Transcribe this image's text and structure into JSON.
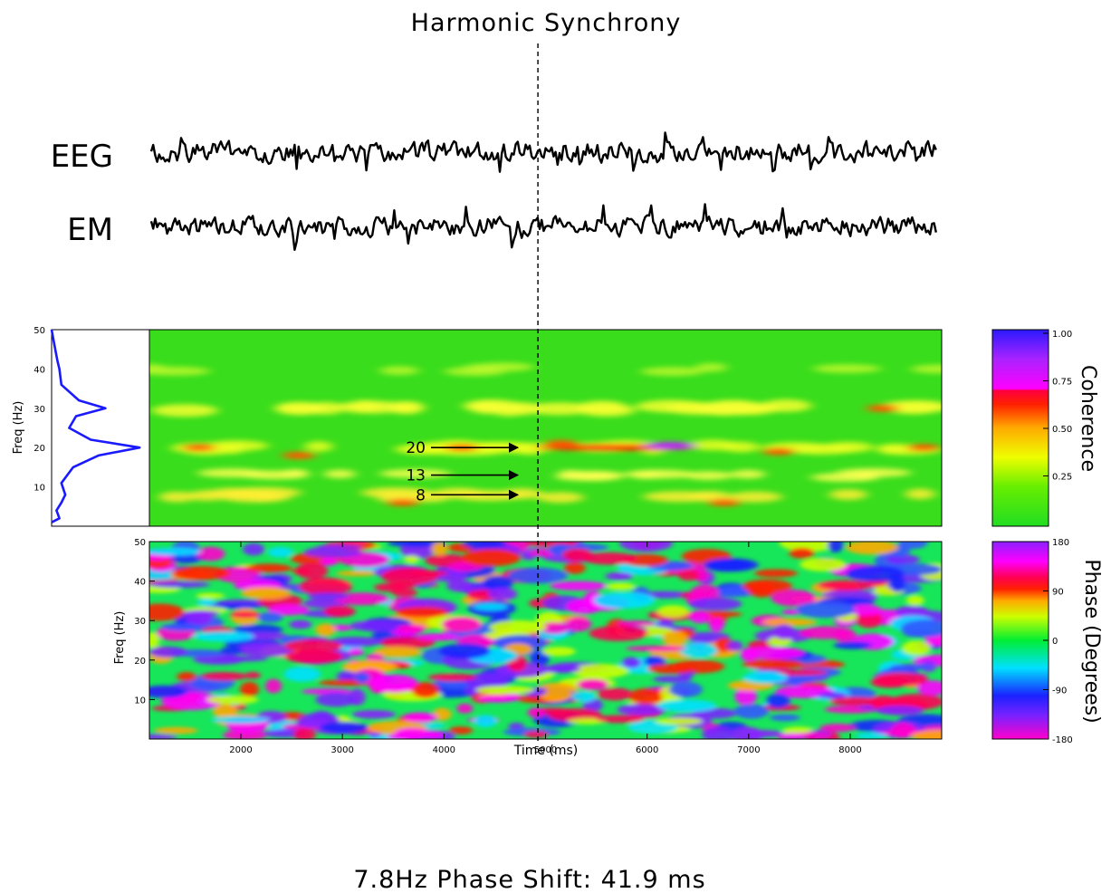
{
  "title": "Harmonic Synchrony",
  "caption": "7.8Hz Phase Shift: 41.9 ms",
  "chart_data": [
    {
      "type": "line",
      "series": [
        {
          "name": "EEG",
          "color": "#000000"
        },
        {
          "name": "EM",
          "color": "#000000"
        }
      ],
      "marker_x": 4925
    },
    {
      "type": "line",
      "ylabel": "Freq (Hz)",
      "ylim": [
        0,
        50
      ],
      "yticks": [
        10,
        20,
        30,
        40,
        50
      ],
      "line_color": "#1a1aff",
      "x": [
        0.0,
        0.08,
        0.05,
        0.1,
        0.14,
        0.1,
        0.22,
        0.48,
        0.9,
        0.4,
        0.18,
        0.25,
        0.55,
        0.28,
        0.1,
        0.08,
        0.06,
        0.03,
        0.0
      ],
      "y": [
        1,
        2,
        4,
        6,
        8,
        11,
        15,
        18,
        20,
        22,
        25,
        28,
        30,
        32,
        36,
        40,
        42,
        46,
        50
      ]
    },
    {
      "type": "heatmap",
      "name": "Coherence",
      "ylim": [
        0,
        50
      ],
      "xlim": [
        1100,
        8900
      ],
      "annotations": [
        {
          "label": "20",
          "freq": 20
        },
        {
          "label": "13",
          "freq": 13
        },
        {
          "label": "8",
          "freq": 8
        }
      ],
      "colorbar": {
        "label": "Coherence",
        "ticks": [
          "1.00",
          "0.75",
          "0.50",
          "0.25"
        ],
        "tick_values": [
          1.0,
          0.75,
          0.5,
          0.25
        ],
        "range": [
          0,
          1
        ]
      }
    },
    {
      "type": "heatmap",
      "name": "Phase",
      "ylabel": "Freq (Hz)",
      "xlabel": "Time (ms)",
      "ylim": [
        0,
        50
      ],
      "yticks": [
        10,
        20,
        30,
        40,
        50
      ],
      "xlim": [
        1100,
        8900
      ],
      "xticks": [
        2000,
        3000,
        4000,
        5000,
        6000,
        7000,
        8000
      ],
      "colorbar": {
        "label": "Phase (Degrees)",
        "ticks": [
          "180",
          "90",
          "0",
          "-90",
          "-180"
        ],
        "tick_values": [
          180,
          90,
          0,
          -90,
          -180
        ],
        "range": [
          -180,
          180
        ]
      }
    }
  ]
}
